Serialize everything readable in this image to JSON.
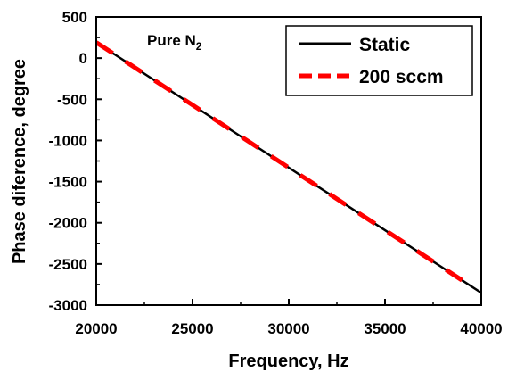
{
  "chart_data": {
    "type": "line",
    "xlabel": "Frequency, Hz",
    "ylabel": "Phase diference, degree",
    "xlim": [
      20000,
      40000
    ],
    "ylim": [
      -3000,
      500
    ],
    "x_ticks": [
      "20000",
      "25000",
      "30000",
      "35000",
      "40000"
    ],
    "y_ticks": [
      "-3000",
      "-2500",
      "-2000",
      "-1500",
      "-1000",
      "-500",
      "0",
      "500"
    ],
    "annotation": {
      "text": "Pure N",
      "subscript": "2"
    },
    "legend_position": "top-right",
    "series": [
      {
        "name": "Static",
        "color": "#000000",
        "style": "solid",
        "x": [
          20000,
          40000
        ],
        "y": [
          190,
          -2850
        ]
      },
      {
        "name": "200 sccm",
        "color": "#ff0000",
        "style": "dashed",
        "x": [
          20000,
          21000,
          22000,
          23000,
          24000,
          25000,
          26000,
          27000,
          28000,
          29000,
          30000,
          31000,
          32000,
          33000,
          34000,
          35000,
          36000,
          37000,
          38000,
          39000
        ],
        "y": [
          190,
          38,
          -114,
          -266,
          -418,
          -570,
          -722,
          -874,
          -1026,
          -1178,
          -1330,
          -1482,
          -1634,
          -1786,
          -1938,
          -2090,
          -2242,
          -2394,
          -2546,
          -2698
        ]
      }
    ]
  }
}
